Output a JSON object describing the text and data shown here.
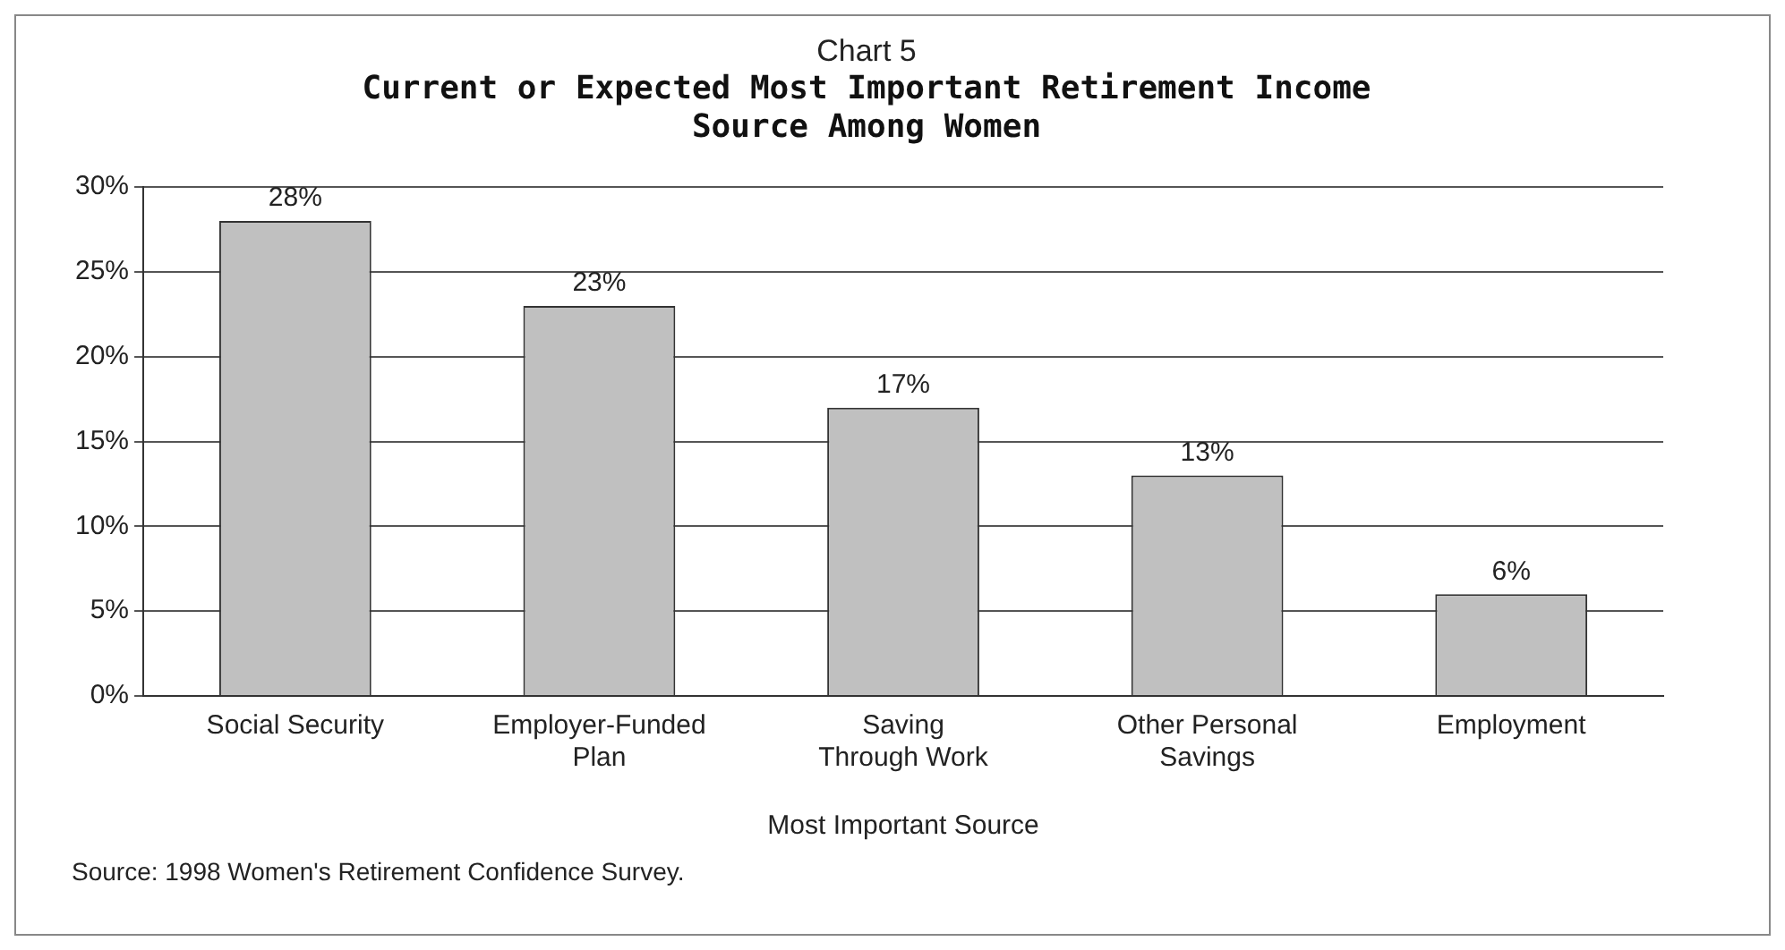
{
  "chart_data": {
    "type": "bar",
    "title": "Chart 5",
    "subtitle": "Current or Expected Most Important Retirement Income Source Among Women",
    "xlabel": "Most Important Source",
    "categories": [
      "Social Security",
      "Employer-Funded Plan",
      "Saving Through Work",
      "Other Personal Savings",
      "Employment"
    ],
    "values": [
      28,
      23,
      17,
      13,
      6
    ],
    "color": "#c0c0c0",
    "value_labels": [
      "28%",
      "23%",
      "17%",
      "13%",
      "6%"
    ],
    "ylim": [
      0,
      30
    ],
    "yticks": [
      {
        "value": 0,
        "label": "0%"
      },
      {
        "value": 5,
        "label": "5%"
      },
      {
        "value": 10,
        "label": "10%"
      },
      {
        "value": 15,
        "label": "15%"
      },
      {
        "value": 20,
        "label": "20%"
      },
      {
        "value": 25,
        "label": "25%"
      },
      {
        "value": 30,
        "label": "30%"
      }
    ],
    "grid": "y",
    "legend": false,
    "annotations": [
      "Source: 1998 Women's Retirement Confidence Survey."
    ]
  }
}
